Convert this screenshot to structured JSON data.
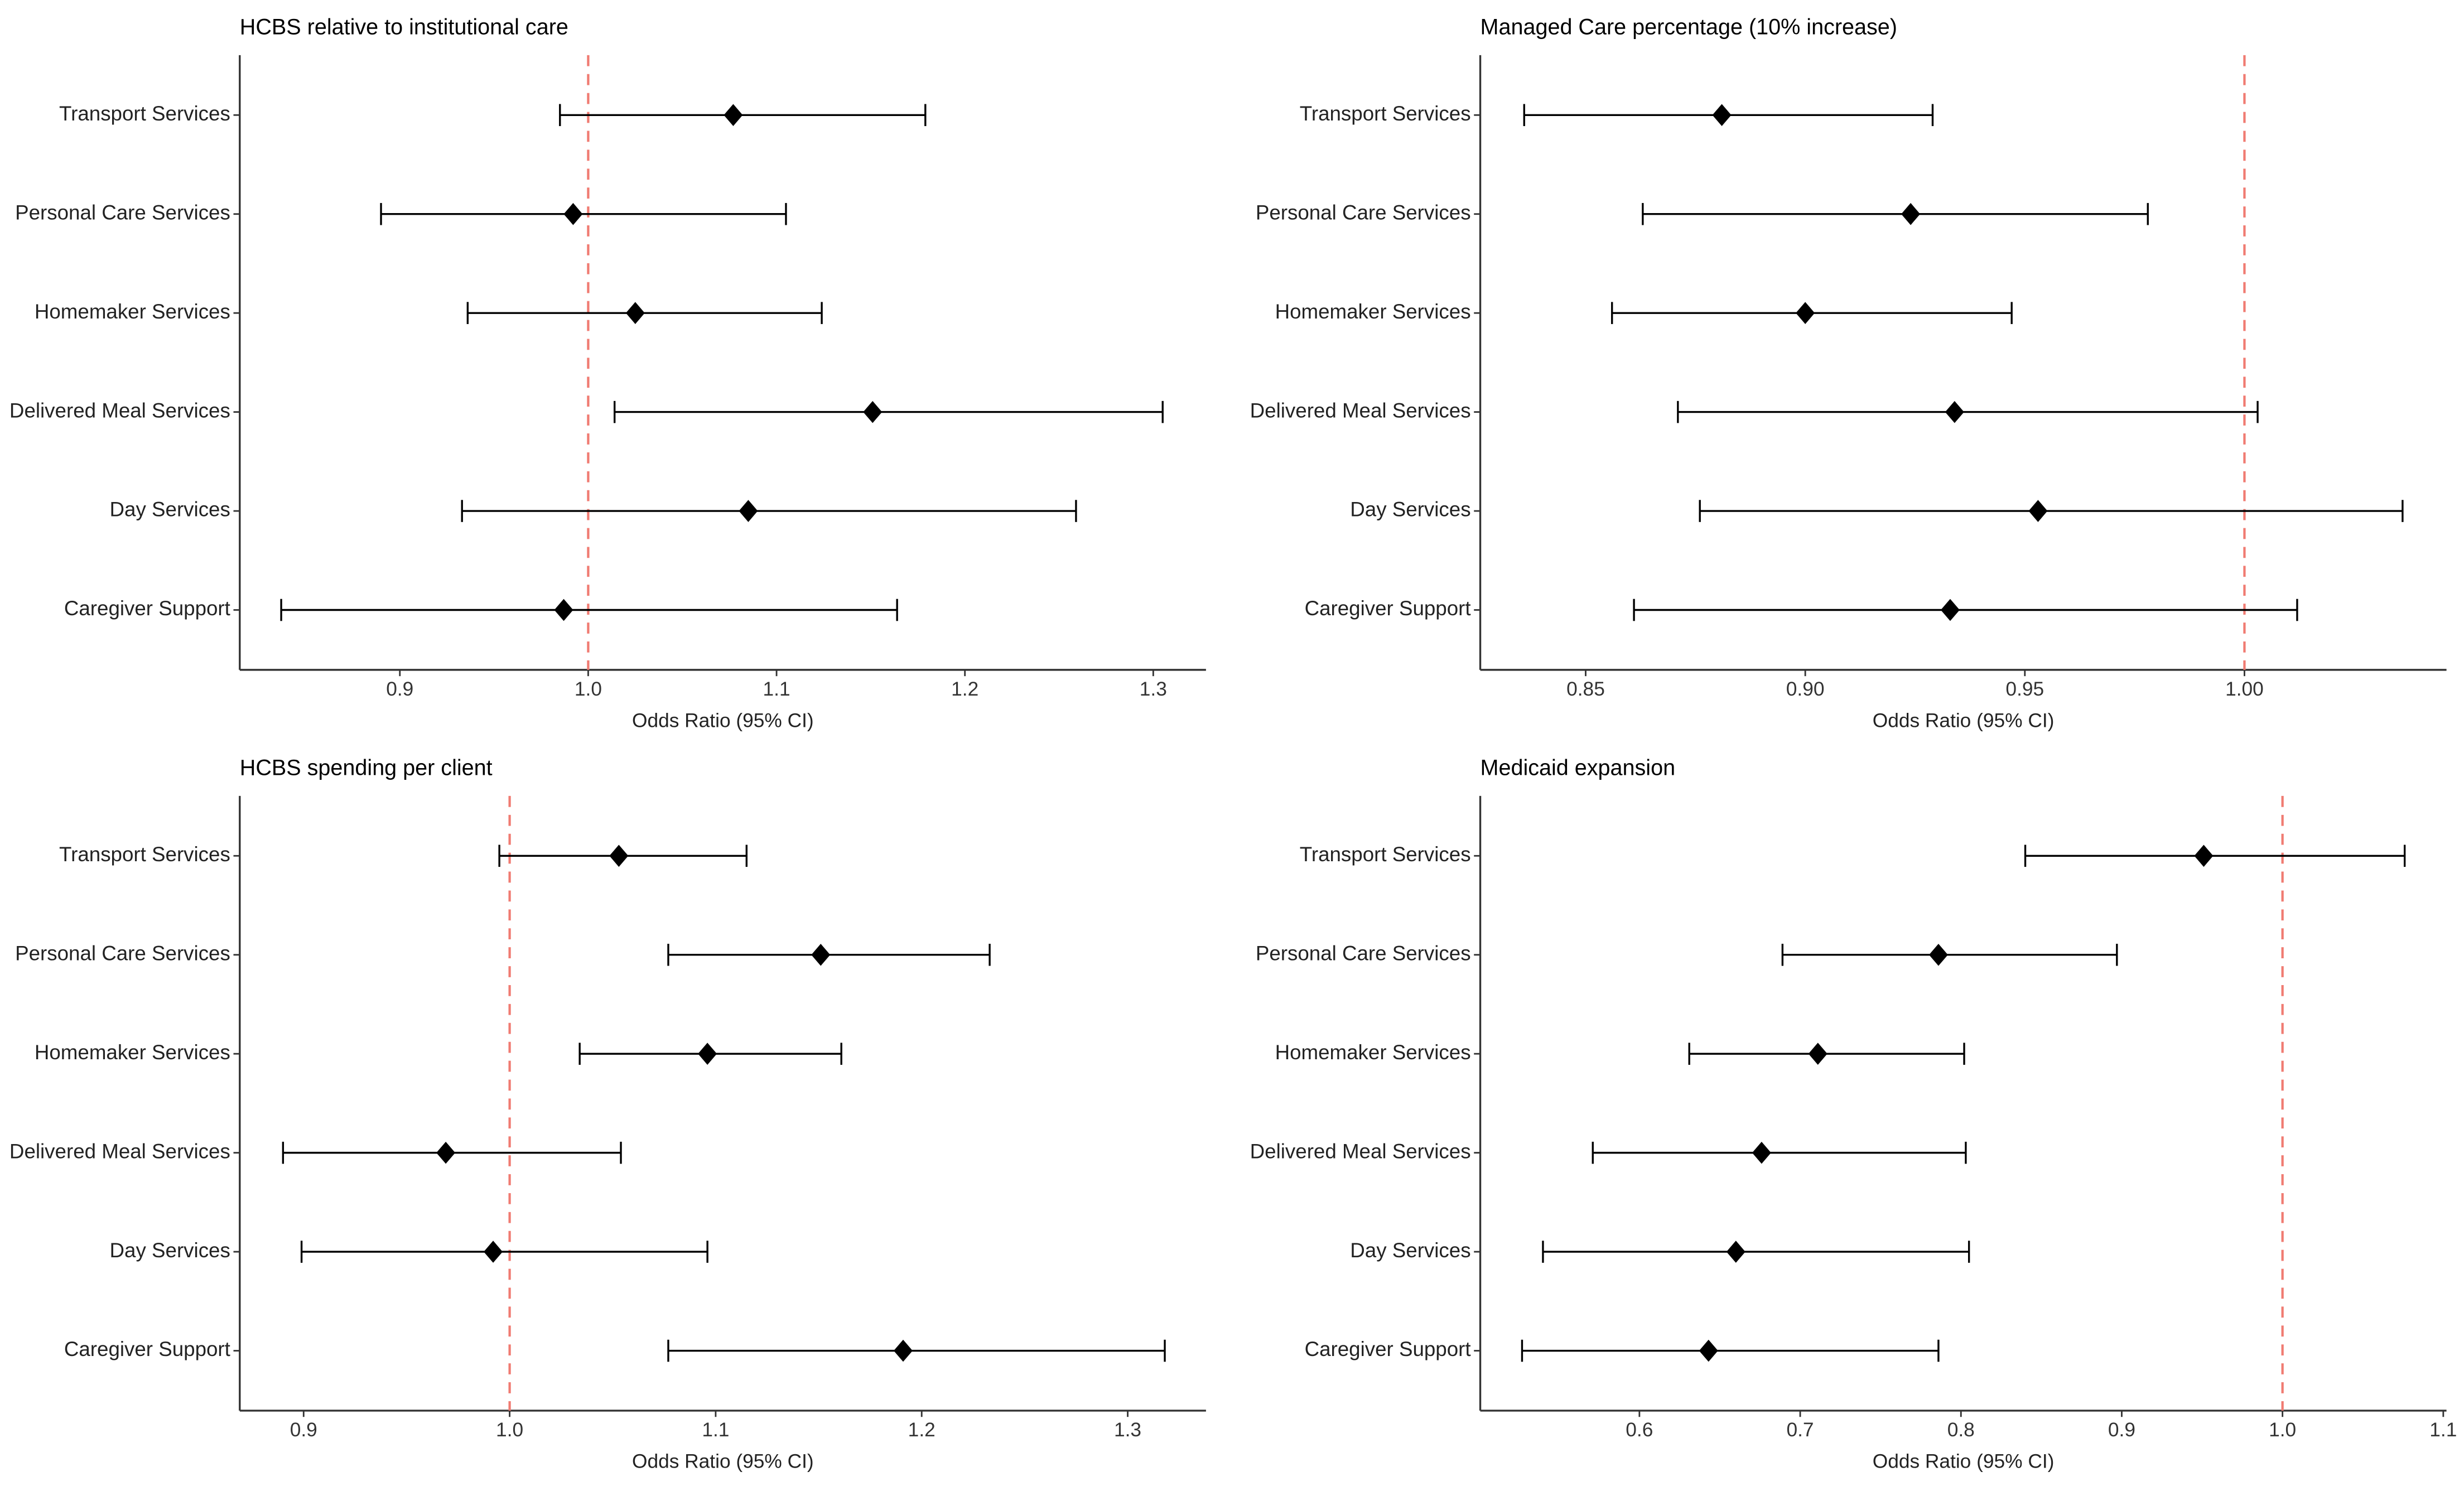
{
  "chart_data": [
    {
      "type": "forest",
      "title": "HCBS relative to institutional care",
      "xlabel": "Odds Ratio (95% CI)",
      "categories": [
        "Transport Services",
        "Personal Care Services",
        "Homemaker Services",
        "Delivered Meal Services",
        "Day Services",
        "Caregiver Support"
      ],
      "values": [
        1.077,
        0.992,
        1.025,
        1.151,
        1.085,
        0.987
      ],
      "lower": [
        0.985,
        0.89,
        0.936,
        1.014,
        0.933,
        0.837
      ],
      "upper": [
        1.179,
        1.105,
        1.124,
        1.305,
        1.259,
        1.164
      ],
      "xlim": [
        0.815,
        1.328
      ],
      "xticks": [
        0.9,
        {
          "value": 1,
          "label": "1.0"
        },
        1.1,
        1.2,
        1.3
      ],
      "ref_line": 1,
      "color": "#000000",
      "ref_color": "#f07b72"
    },
    {
      "type": "forest",
      "title": "Managed Care percentage (10% increase)",
      "xlabel": "Odds Ratio (95% CI)",
      "categories": [
        "Transport Services",
        "Personal Care Services",
        "Homemaker Services",
        "Delivered Meal Services",
        "Day Services",
        "Caregiver Support"
      ],
      "values": [
        0.881,
        0.924,
        0.9,
        0.934,
        0.953,
        0.933
      ],
      "lower": [
        0.836,
        0.863,
        0.856,
        0.871,
        0.876,
        0.861
      ],
      "upper": [
        0.929,
        0.978,
        0.947,
        1.003,
        1.036,
        1.012
      ],
      "xlim": [
        0.826,
        1.046
      ],
      "xticks": [
        0.85,
        {
          "value": 0.9,
          "label": "0.90"
        },
        0.95,
        {
          "value": 1,
          "label": "1.00"
        }
      ],
      "ref_line": 1,
      "color": "#000000",
      "ref_color": "#f07b72"
    },
    {
      "type": "forest",
      "title": "HCBS spending per client",
      "xlabel": "Odds Ratio (95% CI)",
      "categories": [
        "Transport Services",
        "Personal Care Services",
        "Homemaker Services",
        "Delivered Meal Services",
        "Day Services",
        "Caregiver Support"
      ],
      "values": [
        1.053,
        1.151,
        1.096,
        0.969,
        0.992,
        1.191
      ],
      "lower": [
        0.995,
        1.077,
        1.034,
        0.89,
        0.899,
        1.077
      ],
      "upper": [
        1.115,
        1.233,
        1.161,
        1.054,
        1.096,
        1.318
      ],
      "xlim": [
        0.869,
        1.338
      ],
      "xticks": [
        0.9,
        {
          "value": 1,
          "label": "1.0"
        },
        1.1,
        1.2,
        1.3
      ],
      "ref_line": 1,
      "color": "#000000",
      "ref_color": "#f07b72"
    },
    {
      "type": "forest",
      "title": "Medicaid expansion",
      "xlabel": "Odds Ratio (95% CI)",
      "categories": [
        "Transport Services",
        "Personal Care Services",
        "Homemaker Services",
        "Delivered Meal Services",
        "Day Services",
        "Caregiver Support"
      ],
      "values": [
        0.951,
        0.786,
        0.711,
        0.676,
        0.66,
        0.643
      ],
      "lower": [
        0.84,
        0.689,
        0.631,
        0.571,
        0.54,
        0.527
      ],
      "upper": [
        1.076,
        0.897,
        0.802,
        0.803,
        0.805,
        0.786
      ],
      "xlim": [
        0.501,
        1.102
      ],
      "xticks": [
        0.6,
        0.7,
        0.8,
        0.9,
        {
          "value": 1,
          "label": "1.0"
        },
        1.1
      ],
      "ref_line": 1,
      "color": "#000000",
      "ref_color": "#f07b72"
    }
  ]
}
